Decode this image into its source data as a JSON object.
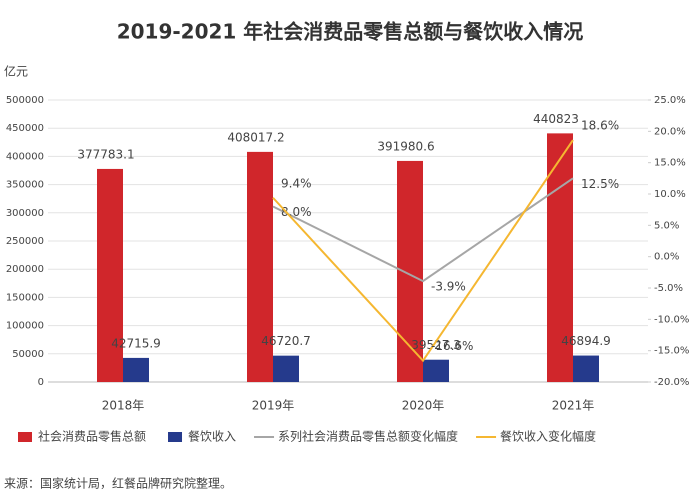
{
  "chart_data": {
    "type": "bar_line",
    "title": "2019-2021 年社会消费品零售总额与餐饮收入情况",
    "y_label": "亿元",
    "source": "来源：国家统计局，红餐品牌研究院整理。",
    "categories": [
      "2018年",
      "2019年",
      "2020年",
      "2021年"
    ],
    "series": [
      {
        "name": "社会消费品零售总额",
        "color": "#d0262b",
        "kind": "bar",
        "values": [
          377783.1,
          408017.2,
          391980.6,
          440823
        ]
      },
      {
        "name": "餐饮收入",
        "color": "#253a8c",
        "kind": "bar",
        "values": [
          42715.9,
          46720.7,
          39527.3,
          46894.9
        ]
      },
      {
        "name": "系列社会消费品零售总额变化幅度",
        "color": "#a6a6a6",
        "kind": "line",
        "axis": "y2",
        "values": [
          null,
          8.0,
          -3.9,
          12.5
        ],
        "value_labels": [
          null,
          "8.0%",
          "-3.9%",
          "12.5%"
        ]
      },
      {
        "name": "餐饮收入变化幅度",
        "color": "#f5b731",
        "kind": "line",
        "axis": "y2",
        "values": [
          null,
          9.4,
          -16.6,
          18.6
        ],
        "value_labels": [
          null,
          "9.4%",
          "-16.6%",
          "18.6%"
        ]
      }
    ],
    "ylim": [
      0,
      500000
    ],
    "yticks": [
      0,
      50000,
      100000,
      150000,
      200000,
      250000,
      300000,
      350000,
      400000,
      450000,
      500000
    ],
    "y2lim": [
      -20,
      25
    ],
    "y2ticks": [
      {
        "value": -20,
        "label": "-20.0%"
      },
      {
        "value": -15,
        "label": "-15.0%"
      },
      {
        "value": -10,
        "label": "-10.0%"
      },
      {
        "value": -5,
        "label": "-5.0%"
      },
      {
        "value": 0,
        "label": "0.0%"
      },
      {
        "value": 5,
        "label": "5.0%"
      },
      {
        "value": 10,
        "label": "10.0%"
      },
      {
        "value": 15,
        "label": "15.0%"
      },
      {
        "value": 20,
        "label": "20.0%"
      },
      {
        "value": 25,
        "label": "25.0%"
      }
    ],
    "grid": true
  }
}
